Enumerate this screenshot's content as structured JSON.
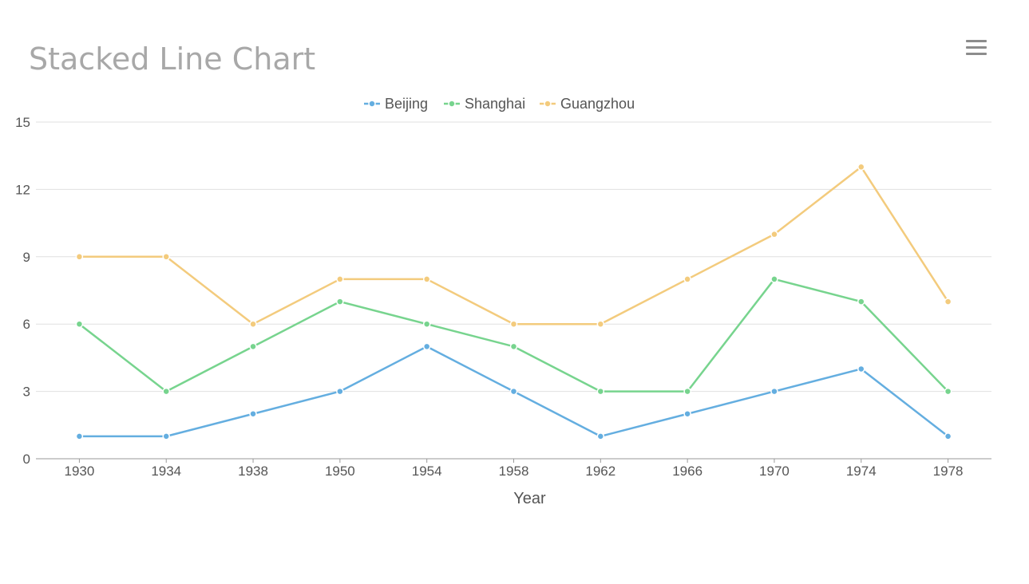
{
  "title": "Stacked Line Chart",
  "menu_icon": "hamburger-menu-icon",
  "chart_data": {
    "type": "line",
    "title": "Stacked Line Chart",
    "stacked": true,
    "xlabel": "Year",
    "ylabel": "",
    "categories": [
      "1930",
      "1934",
      "1938",
      "1950",
      "1954",
      "1958",
      "1962",
      "1966",
      "1970",
      "1974",
      "1978"
    ],
    "ylim": [
      0,
      15
    ],
    "yticks": [
      0,
      3,
      6,
      9,
      12,
      15
    ],
    "grid": true,
    "legend_position": "top-center",
    "series": [
      {
        "name": "Beijing",
        "color": "#64aee0",
        "values": [
          1,
          1,
          2,
          3,
          5,
          3,
          1,
          2,
          3,
          4,
          1
        ]
      },
      {
        "name": "Shanghai",
        "color": "#77d48e",
        "values": [
          5,
          2,
          3,
          4,
          1,
          2,
          2,
          1,
          5,
          3,
          2
        ]
      },
      {
        "name": "Guangzhou",
        "color": "#f3cb7d",
        "values": [
          3,
          6,
          1,
          1,
          2,
          1,
          3,
          5,
          2,
          6,
          4
        ]
      }
    ]
  }
}
